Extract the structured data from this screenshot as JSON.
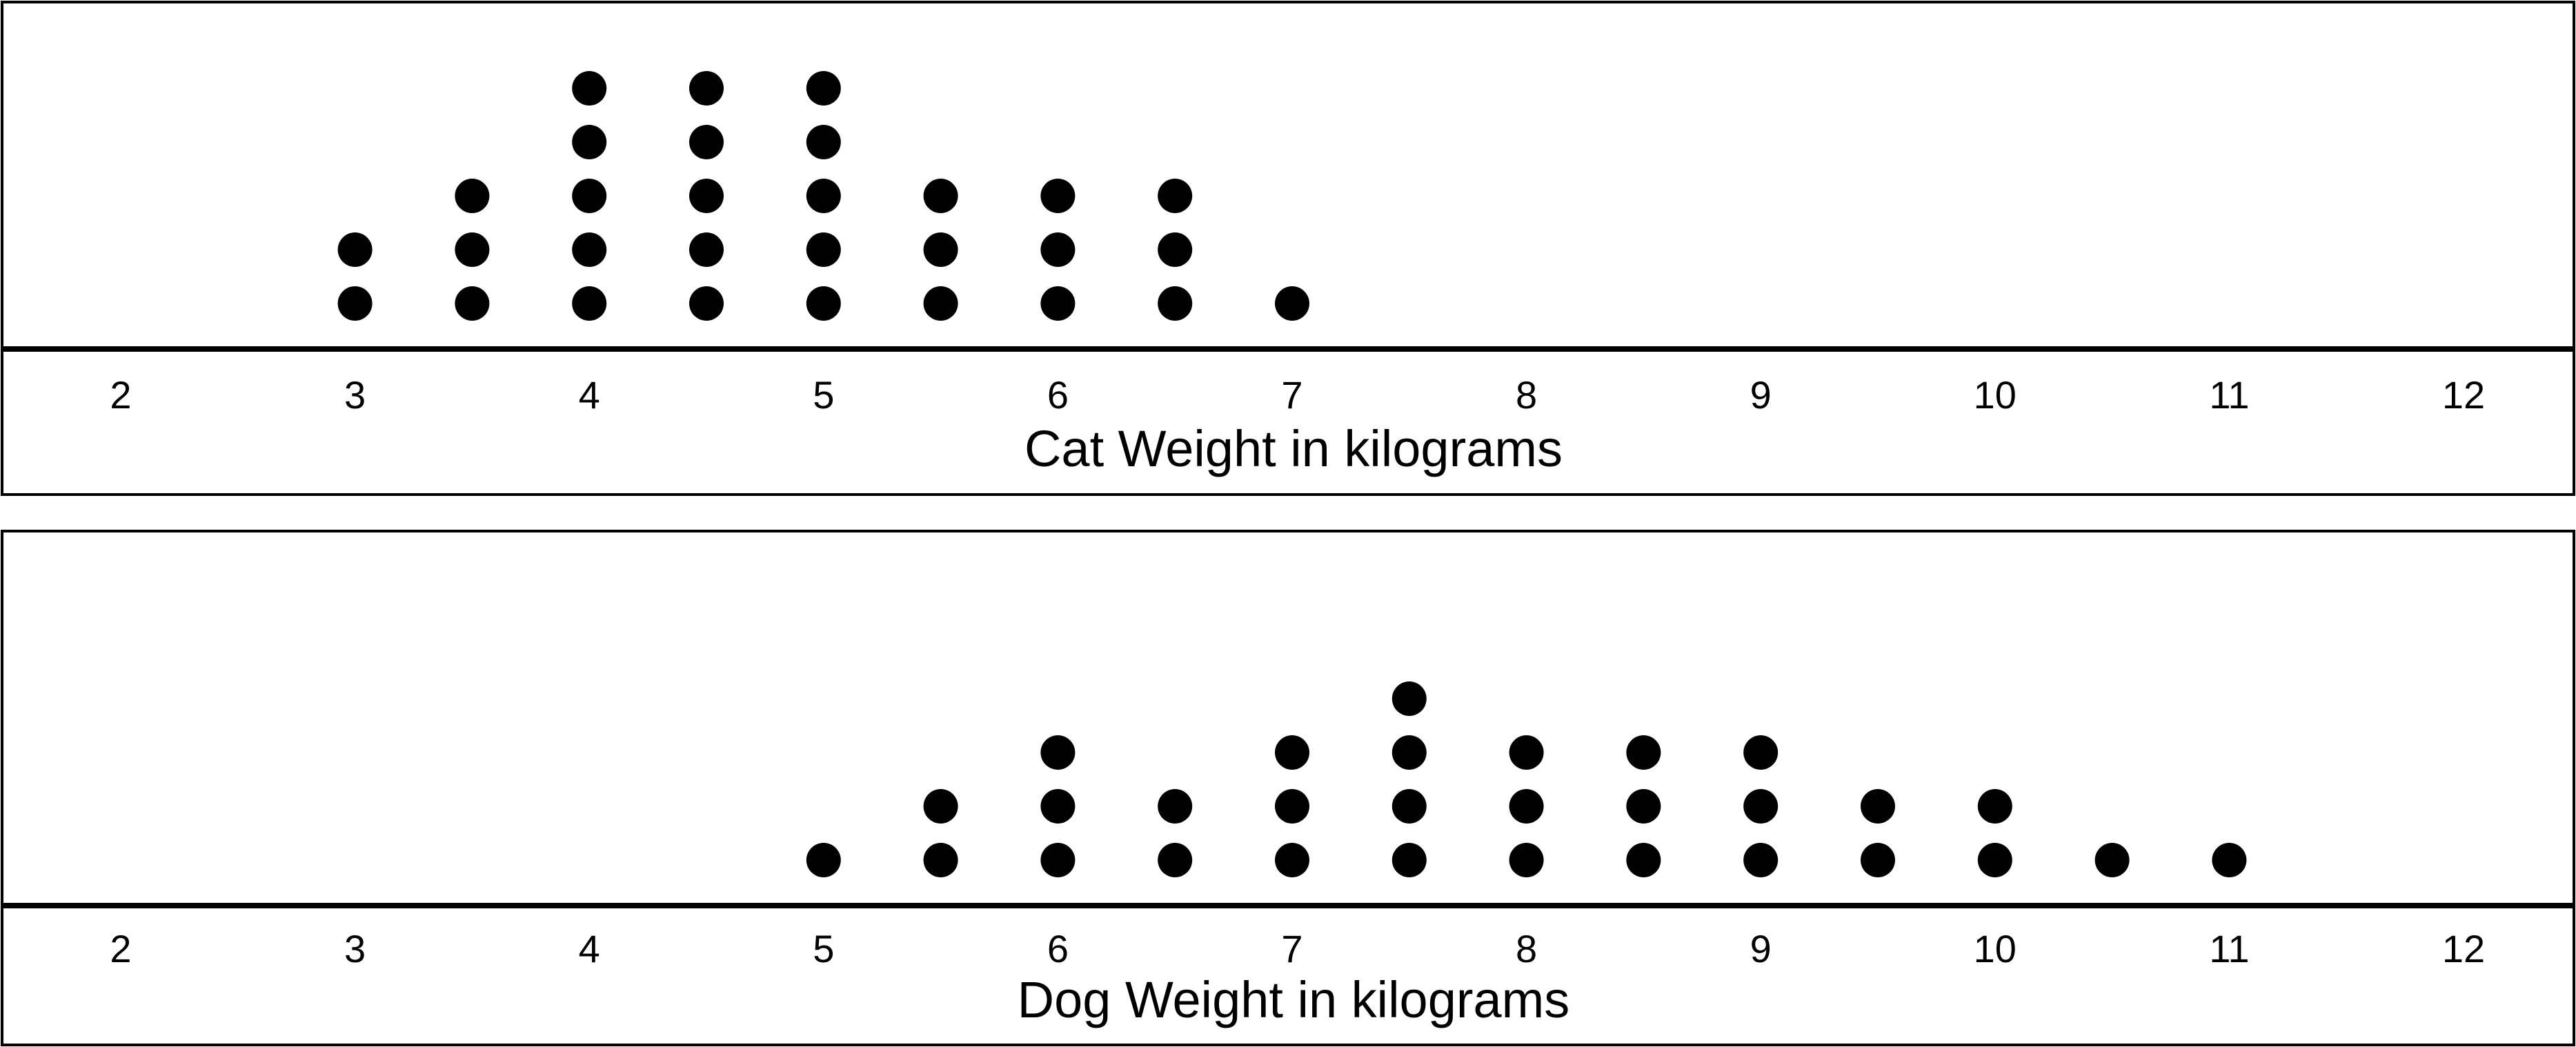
{
  "chart_data": [
    {
      "type": "dot_plot",
      "xlabel": "Cat Weight in kilograms",
      "xlim": [
        2,
        12
      ],
      "ticks": [
        2,
        3,
        4,
        5,
        6,
        7,
        8,
        9,
        10,
        11,
        12
      ],
      "points": [
        {
          "x": 3,
          "count": 2
        },
        {
          "x": 3.5,
          "count": 3
        },
        {
          "x": 4,
          "count": 5
        },
        {
          "x": 4.5,
          "count": 5
        },
        {
          "x": 5,
          "count": 5
        },
        {
          "x": 5.5,
          "count": 3
        },
        {
          "x": 6,
          "count": 3
        },
        {
          "x": 6.5,
          "count": 3
        },
        {
          "x": 7,
          "count": 1
        }
      ]
    },
    {
      "type": "dot_plot",
      "xlabel": "Dog Weight in kilograms",
      "xlim": [
        2,
        12
      ],
      "ticks": [
        2,
        3,
        4,
        5,
        6,
        7,
        8,
        9,
        10,
        11,
        12
      ],
      "points": [
        {
          "x": 5,
          "count": 1
        },
        {
          "x": 5.5,
          "count": 2
        },
        {
          "x": 6,
          "count": 3
        },
        {
          "x": 6.5,
          "count": 2
        },
        {
          "x": 7,
          "count": 3
        },
        {
          "x": 7.5,
          "count": 4
        },
        {
          "x": 8,
          "count": 3
        },
        {
          "x": 8.5,
          "count": 3
        },
        {
          "x": 9,
          "count": 3
        },
        {
          "x": 9.5,
          "count": 2
        },
        {
          "x": 10,
          "count": 2
        },
        {
          "x": 10.5,
          "count": 1
        },
        {
          "x": 11,
          "count": 1
        }
      ]
    }
  ]
}
